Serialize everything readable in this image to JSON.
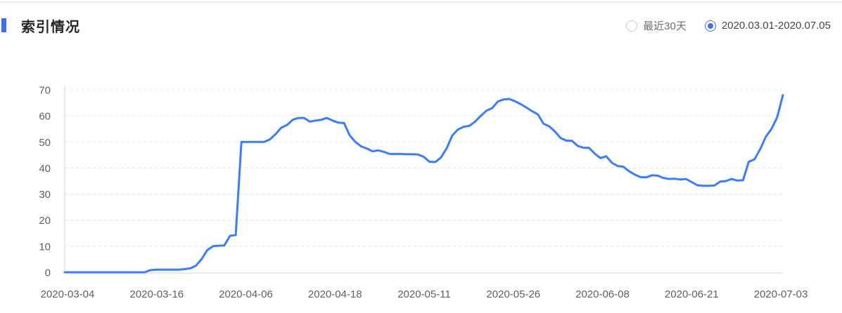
{
  "header": {
    "title": "索引情况",
    "range_options": [
      {
        "label": "最近30天",
        "selected": false
      },
      {
        "label": "2020.03.01-2020.07.05",
        "selected": true
      }
    ]
  },
  "colors": {
    "accent": "#3a6ff2",
    "line": "#3d7bfd",
    "grid": "#e3e3e3",
    "axis": "#d5d5d5",
    "tick_text": "#5c6066",
    "title_text": "#24262b"
  },
  "chart_data": {
    "type": "line",
    "title": "索引情况",
    "xlabel": "",
    "ylabel": "",
    "x_range": [
      "2020-03-01",
      "2020-07-05"
    ],
    "x_tick_labels": [
      "2020-03-04",
      "2020-03-16",
      "2020-04-06",
      "2020-04-18",
      "2020-05-11",
      "2020-05-26",
      "2020-06-08",
      "2020-06-21",
      "2020-07-03"
    ],
    "y_ticks": [
      0,
      10,
      20,
      30,
      40,
      50,
      60,
      70
    ],
    "ylim": [
      0,
      70
    ],
    "grid": "horizontal-dashed",
    "legend": "none",
    "series": [
      {
        "values": [
          0,
          0,
          0,
          0,
          0,
          0,
          0,
          0,
          0,
          0,
          0,
          0,
          0,
          0,
          0,
          0.8,
          1,
          1,
          1,
          1,
          1,
          1.2,
          1.5,
          2.5,
          5,
          8.5,
          10,
          10.2,
          10.3,
          14,
          14.3,
          50,
          50,
          50,
          50,
          50,
          51,
          53,
          55.5,
          56.5,
          58.5,
          59.2,
          59.2,
          57.8,
          58.2,
          58.5,
          59.2,
          58.2,
          57.4,
          57.3,
          52.5,
          50,
          48.3,
          47.5,
          46.4,
          46.8,
          46.2,
          45.4,
          45.4,
          45.4,
          45.3,
          45.3,
          45.2,
          44.3,
          42.4,
          42.3,
          44,
          47.5,
          52.5,
          54.8,
          55.8,
          56.2,
          57.8,
          60,
          62,
          63,
          65.5,
          66.3,
          66.5,
          65.6,
          64.5,
          63.2,
          61.8,
          60.6,
          57,
          56,
          54,
          51.5,
          50.5,
          50.4,
          48.5,
          47.8,
          47.7,
          45.5,
          43.8,
          44.5,
          42,
          40.8,
          40.5,
          38.8,
          37.5,
          36.5,
          36.4,
          37.2,
          37.1,
          36.2,
          35.8,
          35.9,
          35.6,
          35.8,
          34.6,
          33.4,
          33.2,
          33.2,
          33.3,
          34.8,
          35,
          35.8,
          35.2,
          35.3,
          42.4,
          43.3,
          47.2,
          52,
          55,
          59.5,
          68
        ]
      }
    ]
  }
}
